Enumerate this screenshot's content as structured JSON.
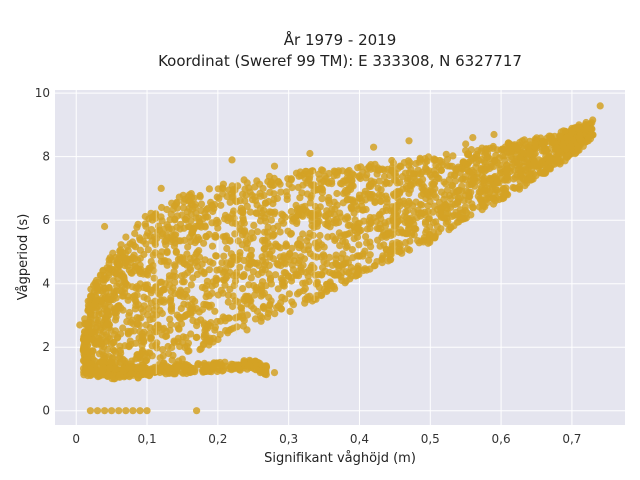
{
  "chart_data": {
    "type": "scatter",
    "title_line1": "År 1979 - 2019",
    "title_line2": "Koordinat (Sweref 99 TM): E 333308, N 6327717",
    "xlabel": "Signifikant våghöjd (m)",
    "ylabel": "Vågperiod (s)",
    "xlim": [
      -0.03,
      0.775
    ],
    "ylim": [
      -0.45,
      10.1
    ],
    "x_ticks": [
      0,
      0.1,
      0.2,
      0.3,
      0.4,
      0.5,
      0.6,
      0.7
    ],
    "x_tick_labels": [
      "0",
      "0,1",
      "0,2",
      "0,3",
      "0,4",
      "0,5",
      "0,6",
      "0,7"
    ],
    "y_ticks": [
      0,
      2,
      4,
      6,
      8,
      10
    ],
    "y_tick_labels": [
      "0",
      "2",
      "4",
      "6",
      "8",
      "10"
    ],
    "grid": true,
    "colors": {
      "marker": "#D4A225",
      "plot_bg": "#E5E5EF",
      "grid": "#FFFFFF"
    },
    "envelope": [
      {
        "x": 0.01,
        "lower": 1.1,
        "upper": 2.8
      },
      {
        "x": 0.02,
        "lower": 1.1,
        "upper": 3.8
      },
      {
        "x": 0.05,
        "lower": 1.0,
        "upper": 5.0
      },
      {
        "x": 0.1,
        "lower": 1.0,
        "upper": 6.2
      },
      {
        "x": 0.15,
        "lower": 1.6,
        "upper": 6.8
      },
      {
        "x": 0.2,
        "lower": 2.2,
        "upper": 7.2
      },
      {
        "x": 0.25,
        "lower": 2.6,
        "upper": 7.3
      },
      {
        "x": 0.3,
        "lower": 3.1,
        "upper": 7.5
      },
      {
        "x": 0.35,
        "lower": 3.6,
        "upper": 7.6
      },
      {
        "x": 0.4,
        "lower": 4.3,
        "upper": 7.7
      },
      {
        "x": 0.45,
        "lower": 4.8,
        "upper": 7.9
      },
      {
        "x": 0.5,
        "lower": 5.3,
        "upper": 8.0
      },
      {
        "x": 0.55,
        "lower": 6.0,
        "upper": 8.2
      },
      {
        "x": 0.6,
        "lower": 6.6,
        "upper": 8.4
      },
      {
        "x": 0.65,
        "lower": 7.3,
        "upper": 8.6
      },
      {
        "x": 0.7,
        "lower": 8.0,
        "upper": 8.9
      },
      {
        "x": 0.73,
        "lower": 8.6,
        "upper": 9.2
      }
    ],
    "low_band": [
      {
        "x": 0.02,
        "y": 1.25
      },
      {
        "x": 0.06,
        "y": 1.2
      },
      {
        "x": 0.1,
        "y": 1.25
      },
      {
        "x": 0.14,
        "y": 1.3
      },
      {
        "x": 0.18,
        "y": 1.35
      },
      {
        "x": 0.22,
        "y": 1.4
      },
      {
        "x": 0.25,
        "y": 1.45
      },
      {
        "x": 0.27,
        "y": 1.25
      }
    ],
    "zero_points": [
      {
        "x": 0.02,
        "y": 0
      },
      {
        "x": 0.03,
        "y": 0
      },
      {
        "x": 0.04,
        "y": 0
      },
      {
        "x": 0.05,
        "y": 0
      },
      {
        "x": 0.06,
        "y": 0
      },
      {
        "x": 0.07,
        "y": 0
      },
      {
        "x": 0.08,
        "y": 0
      },
      {
        "x": 0.09,
        "y": 0
      },
      {
        "x": 0.1,
        "y": 0
      },
      {
        "x": 0.17,
        "y": 0
      }
    ],
    "outliers": [
      {
        "x": 0.74,
        "y": 9.6
      },
      {
        "x": 0.72,
        "y": 9.0
      },
      {
        "x": 0.71,
        "y": 9.0
      },
      {
        "x": 0.7,
        "y": 8.8
      },
      {
        "x": 0.59,
        "y": 8.7
      },
      {
        "x": 0.63,
        "y": 8.5
      },
      {
        "x": 0.56,
        "y": 8.6
      },
      {
        "x": 0.55,
        "y": 8.4
      },
      {
        "x": 0.47,
        "y": 8.5
      },
      {
        "x": 0.22,
        "y": 7.9
      },
      {
        "x": 0.28,
        "y": 7.7
      },
      {
        "x": 0.33,
        "y": 8.1
      },
      {
        "x": 0.42,
        "y": 8.3
      },
      {
        "x": 0.12,
        "y": 7.0
      },
      {
        "x": 0.16,
        "y": 6.8
      },
      {
        "x": 0.04,
        "y": 5.8
      },
      {
        "x": 0.005,
        "y": 2.7
      },
      {
        "x": 0.26,
        "y": 1.2
      },
      {
        "x": 0.28,
        "y": 1.2
      }
    ]
  }
}
